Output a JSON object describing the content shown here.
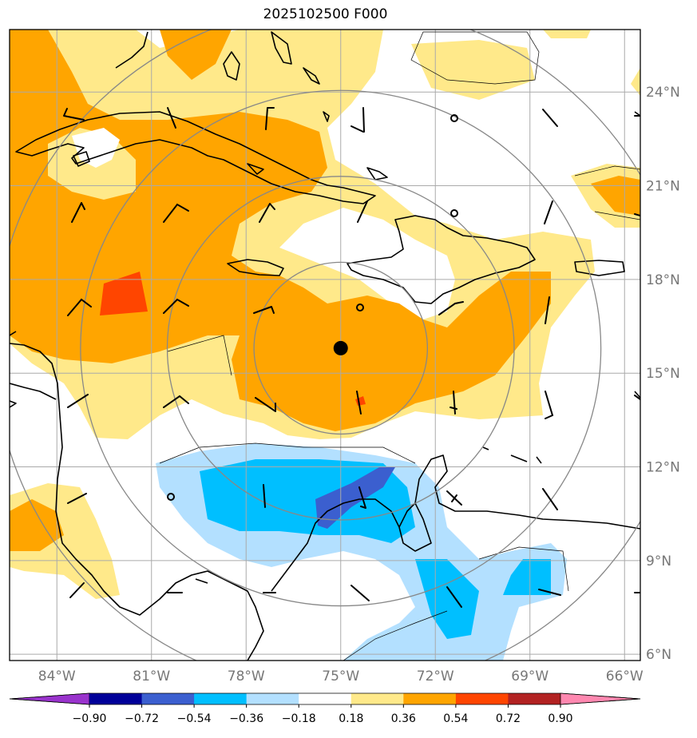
{
  "title": "2025102500 F000",
  "map": {
    "lon_range": [
      -85.5,
      -65.5
    ],
    "lat_range": [
      5.8,
      26.0
    ],
    "lon_ticks": [
      {
        "value": -84,
        "label": "84°W"
      },
      {
        "value": -81,
        "label": "81°W"
      },
      {
        "value": -78,
        "label": "78°W"
      },
      {
        "value": -75,
        "label": "75°W"
      },
      {
        "value": -72,
        "label": "72°W"
      },
      {
        "value": -69,
        "label": "69°W"
      },
      {
        "value": -66,
        "label": "66°W"
      }
    ],
    "lat_ticks": [
      {
        "value": 24,
        "label": "24°N"
      },
      {
        "value": 21,
        "label": "21°N"
      },
      {
        "value": 18,
        "label": "18°N"
      },
      {
        "value": 15,
        "label": "15°N"
      },
      {
        "value": 12,
        "label": "12°N"
      },
      {
        "value": 9,
        "label": "9°N"
      },
      {
        "value": 6,
        "label": "6°N"
      }
    ],
    "center": {
      "lon": -75.0,
      "lat": 15.8
    },
    "range_rings_deg": [
      2.75,
      5.5,
      8.25,
      11.0
    ],
    "gridline_color": "#aaaaaa",
    "ring_color": "#888888",
    "coastline_color": "#000000"
  },
  "colorbar": {
    "ticks": [
      "−0.90",
      "−0.72",
      "−0.54",
      "−0.36",
      "−0.18",
      "0.18",
      "0.36",
      "0.54",
      "0.72",
      "0.90"
    ],
    "colors": [
      "#9933cc",
      "#000099",
      "#3b5fcf",
      "#00bfff",
      "#b3e0ff",
      "#ffffff",
      "#ffe98a",
      "#ffa500",
      "#ff4500",
      "#b22222",
      "#ff88b0"
    ]
  }
}
